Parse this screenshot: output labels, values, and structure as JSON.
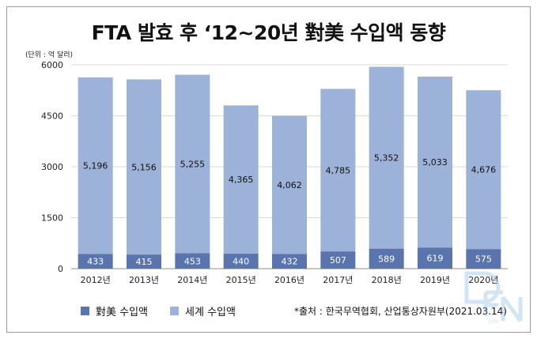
{
  "title": "FTA 발효 후 ‘12~20년 對美 수입액 동향",
  "unit_label": "(단위 : 억 달러)",
  "source": "*출처 : 한국무역협회, 산업통상자원부(2021.03.14)",
  "watermark_text": "DFN",
  "colors": {
    "us": "#5a75ad",
    "world": "#9cb2d8",
    "grid": "#d9d9d9"
  },
  "chart_data": {
    "type": "bar",
    "stacked": true,
    "categories": [
      "2012년",
      "2013년",
      "2014년",
      "2015년",
      "2016년",
      "2017년",
      "2018년",
      "2019년",
      "2020년"
    ],
    "series": [
      {
        "name": "對美 수입액",
        "values": [
          433,
          415,
          453,
          440,
          432,
          507,
          589,
          619,
          575
        ]
      },
      {
        "name": "세계 수입액",
        "values": [
          5196,
          5156,
          5255,
          4365,
          4062,
          4785,
          5352,
          5033,
          4676
        ]
      }
    ],
    "ylim": [
      0,
      6000
    ],
    "yticks": [
      "0",
      "1500",
      "3000",
      "4500",
      "6000"
    ],
    "grid": true,
    "legend": "bottom-left"
  }
}
